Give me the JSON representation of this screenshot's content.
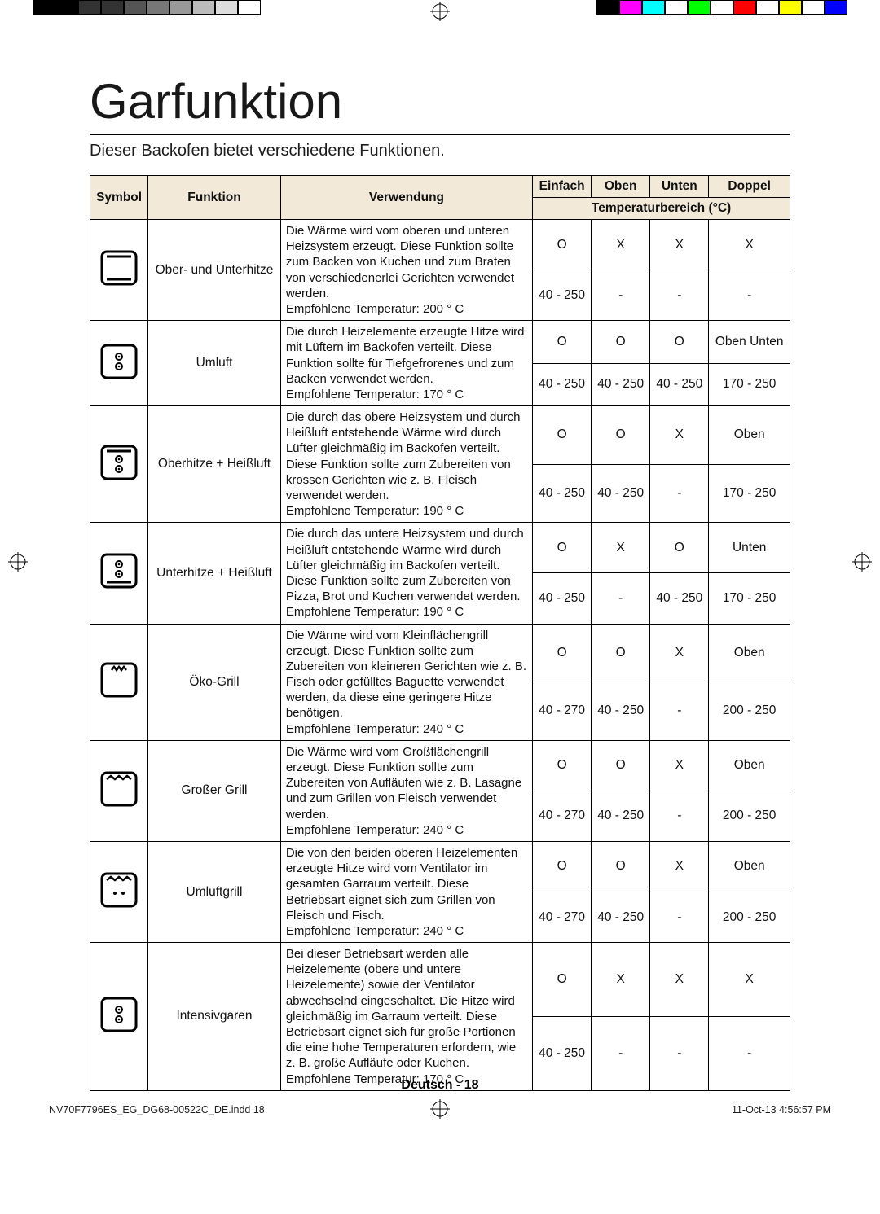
{
  "title": "Garfunktion",
  "subtitle": "Dieser Backofen bietet verschiedene Funktionen.",
  "headers": {
    "symbol": "Symbol",
    "funktion": "Funktion",
    "verwendung": "Verwendung",
    "einfach": "Einfach",
    "oben": "Oben",
    "unten": "Unten",
    "doppel": "Doppel",
    "temperaturbereich": "Temperaturbereich (°C)"
  },
  "rows": [
    {
      "icon": "top-bottom",
      "funktion": "Ober- und Unterhitze",
      "verwendung": "Die Wärme wird vom oberen und unteren Heizsystem erzeugt. Diese Funktion sollte zum Backen von Kuchen und zum Braten von verschiedenerlei Gerichten verwendet werden.\nEmpfohlene Temperatur: 200 ° C",
      "r1": [
        "O",
        "X",
        "X",
        "X"
      ],
      "r2": [
        "40 - 250",
        "-",
        "-",
        "-"
      ]
    },
    {
      "icon": "convection",
      "funktion": "Umluft",
      "verwendung": "Die durch Heizelemente erzeugte Hitze wird mit Lüftern im Backofen verteilt. Diese Funktion sollte für Tiefgefrorenes und zum Backen verwendet werden.\nEmpfohlene Temperatur: 170 ° C",
      "r1": [
        "O",
        "O",
        "O",
        "Oben Unten"
      ],
      "r2": [
        "40 - 250",
        "40 - 250",
        "40 - 250",
        "170 - 250"
      ]
    },
    {
      "icon": "top-conv",
      "funktion": "Oberhitze + Heißluft",
      "verwendung": "Die durch das obere Heizsystem und durch Heißluft entstehende Wärme wird durch Lüfter gleichmäßig im Backofen verteilt. Diese Funktion sollte zum Zubereiten von krossen Gerichten wie z. B. Fleisch verwendet werden.\nEmpfohlene Temperatur: 190 ° C",
      "r1": [
        "O",
        "O",
        "X",
        "Oben"
      ],
      "r2": [
        "40 - 250",
        "40 - 250",
        "-",
        "170 - 250"
      ]
    },
    {
      "icon": "bottom-conv",
      "funktion": "Unterhitze + Heißluft",
      "verwendung": "Die durch das untere Heizsystem und durch Heißluft entstehende Wärme wird durch Lüfter gleichmäßig im Backofen verteilt. Diese Funktion sollte zum Zubereiten von Pizza, Brot und Kuchen verwendet werden.\nEmpfohlene Temperatur: 190 ° C",
      "r1": [
        "O",
        "X",
        "O",
        "Unten"
      ],
      "r2": [
        "40 - 250",
        "-",
        "40 - 250",
        "170 - 250"
      ]
    },
    {
      "icon": "eco-grill",
      "funktion": "Öko-Grill",
      "verwendung": "Die Wärme wird vom Kleinflächengrill erzeugt. Diese Funktion sollte zum Zubereiten von kleineren Gerichten wie z. B. Fisch oder gefülltes Baguette verwendet werden, da diese eine geringere Hitze benötigen.\nEmpfohlene Temperatur: 240 ° C",
      "r1": [
        "O",
        "O",
        "X",
        "Oben"
      ],
      "r2": [
        "40 - 270",
        "40 - 250",
        "-",
        "200 - 250"
      ]
    },
    {
      "icon": "large-grill",
      "funktion": "Großer Grill",
      "verwendung": "Die Wärme wird vom Großflächengrill erzeugt. Diese Funktion sollte zum Zubereiten von Aufläufen wie z. B. Lasagne und zum Grillen von Fleisch verwendet werden.\nEmpfohlene Temperatur: 240 ° C",
      "r1": [
        "O",
        "O",
        "X",
        "Oben"
      ],
      "r2": [
        "40 - 270",
        "40 - 250",
        "-",
        "200 - 250"
      ]
    },
    {
      "icon": "fan-grill",
      "funktion": "Umluftgrill",
      "verwendung": "Die von den beiden oberen Heizelementen erzeugte Hitze wird vom Ventilator im gesamten Garraum verteilt. Diese Betriebsart eignet sich zum Grillen von Fleisch und Fisch.\nEmpfohlene Temperatur: 240 ° C",
      "r1": [
        "O",
        "O",
        "X",
        "Oben"
      ],
      "r2": [
        "40 - 270",
        "40 - 250",
        "-",
        "200 - 250"
      ]
    },
    {
      "icon": "intensive",
      "funktion": "Intensivgaren",
      "verwendung": "Bei dieser Betriebsart werden alle Heizelemente (obere und untere Heizelemente) sowie der Ventilator abwechselnd eingeschaltet. Die Hitze wird gleichmäßig im Garraum verteilt. Diese Betriebsart eignet sich für große Portionen die eine hohe Temperaturen erfordern, wie z. B. große Aufläufe oder Kuchen.\nEmpfohlene Temperatur: 170 ° C",
      "r1": [
        "O",
        "X",
        "X",
        "X"
      ],
      "r2": [
        "40 - 250",
        "-",
        "-",
        "-"
      ]
    }
  ],
  "footer_lang": "Deutsch - ",
  "footer_page": "18",
  "print_file": "NV70F7796ES_EG_DG68-00522C_DE.indd   18",
  "print_time": "11-Oct-13   4:56:57 PM",
  "color_bar_left": [
    "#000000",
    "#000000",
    "#333333",
    "#333333",
    "#555555",
    "#777777",
    "#999999",
    "#bbbbbb",
    "#dddddd",
    "#ffffff"
  ],
  "color_bar_right": [
    "#000000",
    "#ff00ff",
    "#00ffff",
    "#ffffff",
    "#00ff00",
    "#ffffff",
    "#ff0000",
    "#ffffff",
    "#ffff00",
    "#ffffff",
    "#0000ff"
  ],
  "icon_stroke": "#000000",
  "icon_stroke_width": 3
}
